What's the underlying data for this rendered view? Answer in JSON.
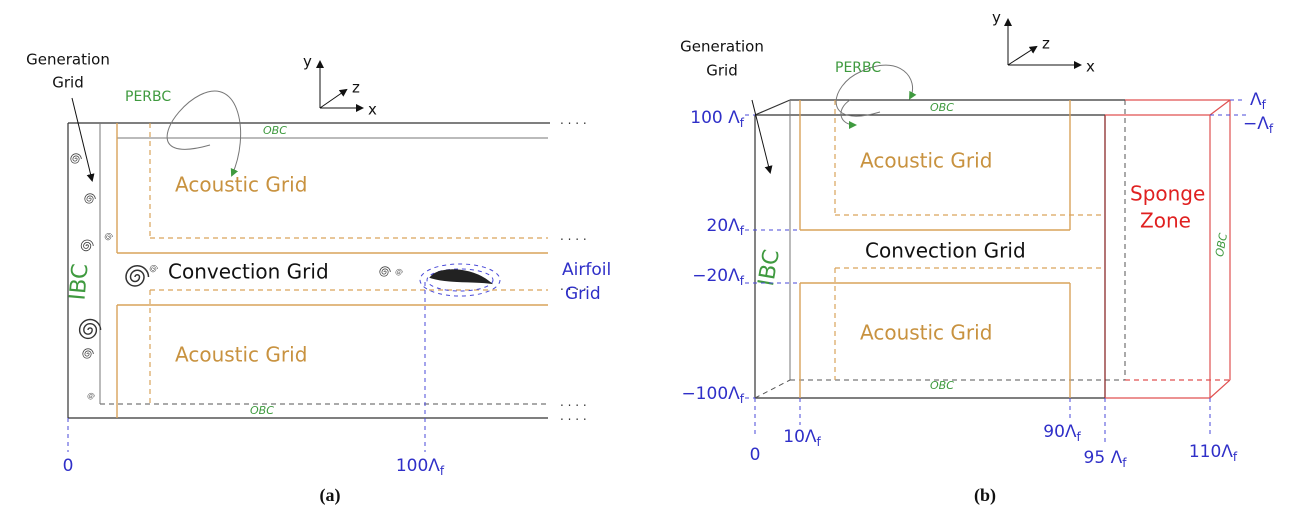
{
  "panel_a": {
    "label": "(a)",
    "axes": {
      "y": "y",
      "z": "z",
      "x": "x"
    },
    "generation_grid": [
      "Generation",
      "Grid"
    ],
    "perbc": "PERBC",
    "obc_top": "OBC",
    "acoustic_top": "Acoustic Grid",
    "ibc": "IBC",
    "convection": "Convection Grid",
    "airfoil": [
      "Airfoil",
      "Grid"
    ],
    "acoustic_bottom": "Acoustic Grid",
    "obc_bottom": "OBC",
    "x_labels": [
      {
        "text": "0"
      },
      {
        "text": "100Λ",
        "sub": "f"
      }
    ]
  },
  "panel_b": {
    "label": "(b)",
    "axes": {
      "y": "y",
      "z": "z",
      "x": "x"
    },
    "generation_grid": [
      "Generation",
      "Grid"
    ],
    "perbc": "PERBC",
    "obc_top": "OBC",
    "acoustic_top": "Acoustic Grid",
    "sponge": [
      "Sponge",
      "Zone"
    ],
    "obc_right": "OBC",
    "convection": "Convection Grid",
    "ibc": "IBC",
    "acoustic_bottom": "Acoustic Grid",
    "obc_bottom": "OBC",
    "y_labels": [
      {
        "text": "Λ",
        "sub": "f"
      },
      {
        "text": "−Λ",
        "sub": "f"
      },
      {
        "text": "100 Λ",
        "sub": "f"
      },
      {
        "text": "20Λ",
        "sub": "f"
      },
      {
        "text": "−20Λ",
        "sub": "f"
      },
      {
        "text": "−100Λ",
        "sub": "f"
      }
    ],
    "x_labels": [
      {
        "text": "0"
      },
      {
        "text": "10Λ",
        "sub": "f"
      },
      {
        "text": "90Λ",
        "sub": "f"
      },
      {
        "text": "95 Λ",
        "sub": "f"
      },
      {
        "text": "110Λ",
        "sub": "f"
      }
    ]
  }
}
